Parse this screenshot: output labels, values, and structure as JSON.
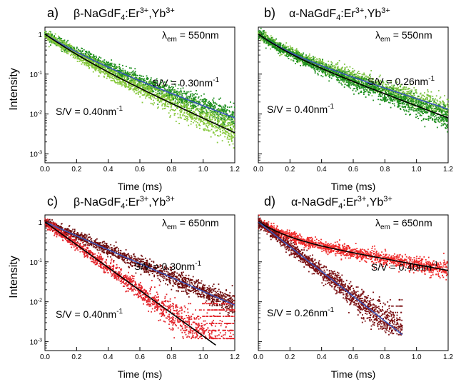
{
  "figure": {
    "ylabel": "Intensity",
    "xlabel": "Time (ms)"
  },
  "chart_data": [
    {
      "type": "scatter",
      "panel_letter": "a)",
      "phase": "β",
      "compound": "-NaGdF",
      "subscript": "4",
      "dopant_1": ":Er",
      "dopant_1_charge": "3+",
      "dopant_2": ",Yb",
      "dopant_2_charge": "3+",
      "emission_label": "λ",
      "emission_sub": "em",
      "emission_value": " = 550nm",
      "emission_nm": 550,
      "xlabel": "Time (ms)",
      "ylabel": "Intensity",
      "yscale": "log",
      "xlim": [
        0,
        1.2
      ],
      "ylim": [
        0.0006,
        1.5
      ],
      "xticks": [
        "0.0",
        "0.2",
        "0.4",
        "0.6",
        "0.8",
        "1.0",
        "1.2"
      ],
      "yticks": [
        "1",
        "10-1",
        "10-2",
        "10-3"
      ],
      "grid": false,
      "noise_floor": 0.0012,
      "series": [
        {
          "label": "S/V = 0.30nm-1",
          "label_main": "S/V = 0.30nm",
          "label_sup": "-1",
          "sv_nm_inv": 0.3,
          "scatter_color": "#1f8f1f",
          "fit_color": "#3a55b8",
          "tau1_ms": 0.13,
          "tau2_ms": 0.29,
          "frac_fast": 0.5,
          "fit_x_end": 1.2,
          "scatter_x_end": 1.2
        },
        {
          "label": "S/V = 0.40nm-1",
          "label_main": "S/V = 0.40nm",
          "label_sup": "-1",
          "sv_nm_inv": 0.4,
          "scatter_color": "#86c83c",
          "fit_color": "#000000",
          "tau1_ms": 0.12,
          "tau2_ms": 0.24,
          "frac_fast": 0.5,
          "fit_x_end": 1.2,
          "scatter_x_end": 1.2
        }
      ]
    },
    {
      "type": "scatter",
      "panel_letter": "b)",
      "phase": "α",
      "compound": "-NaGdF",
      "subscript": "4",
      "dopant_1": ":Er",
      "dopant_1_charge": "3+",
      "dopant_2": ",Yb",
      "dopant_2_charge": "3+",
      "emission_label": "λ",
      "emission_sub": "em",
      "emission_value": " = 550nm",
      "emission_nm": 550,
      "xlabel": "Time (ms)",
      "ylabel": "",
      "yscale": "log",
      "xlim": [
        0,
        1.2
      ],
      "ylim": [
        0.0006,
        1.5
      ],
      "xticks": [
        "0.0",
        "0.2",
        "0.4",
        "0.6",
        "0.8",
        "1.0",
        "1.2"
      ],
      "yticks": [],
      "grid": false,
      "noise_floor": 0.0012,
      "series": [
        {
          "label": "S/V = 0.26nm-1",
          "label_main": "S/V = 0.26nm",
          "label_sup": "-1",
          "sv_nm_inv": 0.26,
          "scatter_color": "#7cc242",
          "fit_color": "#3a55b8",
          "tau1_ms": 0.11,
          "tau2_ms": 0.33,
          "frac_fast": 0.5,
          "fit_x_end": 1.2,
          "scatter_x_end": 1.2
        },
        {
          "label": "S/V = 0.40nm-1",
          "label_main": "S/V = 0.40nm",
          "label_sup": "-1",
          "sv_nm_inv": 0.4,
          "scatter_color": "#1f8f1f",
          "fit_color": "#000000",
          "tau1_ms": 0.11,
          "tau2_ms": 0.29,
          "frac_fast": 0.5,
          "fit_x_end": 1.2,
          "scatter_x_end": 1.2
        }
      ]
    },
    {
      "type": "scatter",
      "panel_letter": "c)",
      "phase": "β",
      "compound": "-NaGdF",
      "subscript": "4",
      "dopant_1": ":Er",
      "dopant_1_charge": "3+",
      "dopant_2": ",Yb",
      "dopant_2_charge": "3+",
      "emission_label": "λ",
      "emission_sub": "em",
      "emission_value": " = 650nm",
      "emission_nm": 650,
      "xlabel": "Time (ms)",
      "ylabel": "Intensity",
      "yscale": "log",
      "xlim": [
        0,
        1.2
      ],
      "ylim": [
        0.0006,
        1.5
      ],
      "xticks": [
        "0.0",
        "0.2",
        "0.4",
        "0.6",
        "0.8",
        "1.0",
        "1.2"
      ],
      "yticks": [
        "1",
        "10-1",
        "10-2",
        "10-3"
      ],
      "grid": false,
      "noise_floor": 0.0012,
      "series": [
        {
          "label": "S/V = 0.30nm-1",
          "label_main": "S/V = 0.30nm",
          "label_sup": "-1",
          "sv_nm_inv": 0.3,
          "scatter_color": "#6e0b0b",
          "fit_color": "#3a55b8",
          "tau1_ms": 0.25,
          "tau2_ms": 0.25,
          "frac_fast": 0.5,
          "fit_x_end": 1.2,
          "scatter_x_end": 1.2
        },
        {
          "label": "S/V = 0.40nm-1",
          "label_main": "S/V = 0.40nm",
          "label_sup": "-1",
          "sv_nm_inv": 0.4,
          "scatter_color": "#e3242b",
          "fit_color": "#000000",
          "tau1_ms": 0.152,
          "tau2_ms": 0.152,
          "frac_fast": 0.5,
          "fit_x_end": 1.08,
          "scatter_x_end": 1.2
        }
      ]
    },
    {
      "type": "scatter",
      "panel_letter": "d)",
      "phase": "α",
      "compound": "-NaGdF",
      "subscript": "4",
      "dopant_1": ":Er",
      "dopant_1_charge": "3+",
      "dopant_2": ",Yb",
      "dopant_2_charge": "3+",
      "emission_label": "λ",
      "emission_sub": "em",
      "emission_value": " = 650nm",
      "emission_nm": 650,
      "xlabel": "Time (ms)",
      "ylabel": "",
      "yscale": "log",
      "xlim": [
        0,
        1.2
      ],
      "ylim": [
        0.0006,
        1.5
      ],
      "xticks": [
        "0.0",
        "0.2",
        "0.4",
        "0.6",
        "0.8",
        "1.0",
        "1.2"
      ],
      "yticks": [],
      "grid": false,
      "noise_floor": 0.0015,
      "series": [
        {
          "label": "S/V = 0.40nm-1",
          "label_main": "S/V = 0.40nm",
          "label_sup": "-1",
          "sv_nm_inv": 0.4,
          "scatter_color": "#ef2a2a",
          "fit_color": "#000000",
          "tau1_ms": 0.12,
          "tau2_ms": 0.6,
          "frac_fast": 0.55,
          "fit_x_end": 1.2,
          "scatter_x_end": 1.2
        },
        {
          "label": "S/V = 0.26nm-1",
          "label_main": "S/V = 0.26nm",
          "label_sup": "-1",
          "sv_nm_inv": 0.26,
          "scatter_color": "#7a0f12",
          "fit_color": "#3a55b8",
          "tau1_ms": 0.14,
          "tau2_ms": 0.14,
          "frac_fast": 0.5,
          "fit_x_end": 0.91,
          "scatter_x_end": 0.91
        }
      ]
    }
  ]
}
